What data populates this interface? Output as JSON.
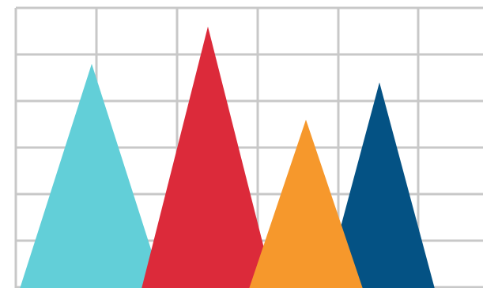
{
  "chart_data": {
    "type": "triangle",
    "categories": [
      null,
      null,
      null,
      null
    ],
    "values": [
      4.8,
      5.6,
      3.6,
      4.4
    ],
    "colors": [
      "#62cfd8",
      "#dc2a3a",
      "#f6982c",
      "#045284"
    ],
    "ylim": [
      0,
      6.17
    ],
    "yticks": [
      0,
      1,
      2,
      3,
      4,
      5,
      6
    ],
    "grid": true
  }
}
